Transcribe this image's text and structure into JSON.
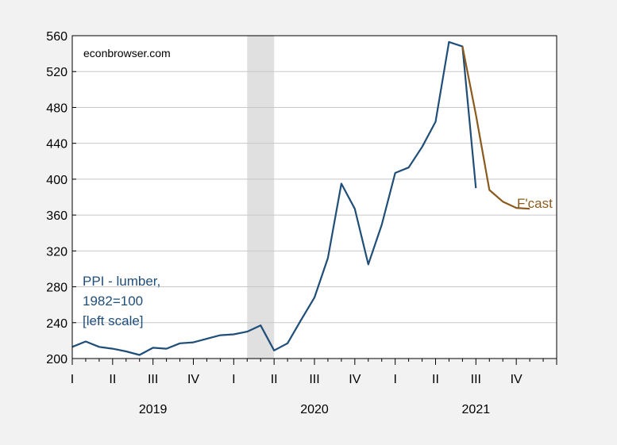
{
  "chart_data": {
    "type": "line",
    "title": "",
    "xlabel": "",
    "ylabel": "",
    "ylim": [
      200,
      560
    ],
    "yticks": [
      200,
      240,
      280,
      320,
      360,
      400,
      440,
      480,
      520,
      560
    ],
    "grid": "horizontal",
    "x_range": [
      "2019-01",
      "2021-12"
    ],
    "x_tick_labels": [
      {
        "label": "I",
        "month": "2019-01"
      },
      {
        "label": "II",
        "month": "2019-04"
      },
      {
        "label": "III",
        "month": "2019-07"
      },
      {
        "label": "IV",
        "month": "2019-10"
      },
      {
        "label": "I",
        "month": "2020-01"
      },
      {
        "label": "II",
        "month": "2020-04"
      },
      {
        "label": "III",
        "month": "2020-07"
      },
      {
        "label": "IV",
        "month": "2020-10"
      },
      {
        "label": "I",
        "month": "2021-01"
      },
      {
        "label": "II",
        "month": "2021-04"
      },
      {
        "label": "III",
        "month": "2021-07"
      },
      {
        "label": "IV",
        "month": "2021-10"
      }
    ],
    "year_labels": [
      {
        "label": "2019",
        "center_month": "2019-07"
      },
      {
        "label": "2020",
        "center_month": "2020-07"
      },
      {
        "label": "2021",
        "center_month": "2021-07"
      }
    ],
    "recession_shading": {
      "start": "2020-02",
      "end": "2020-04",
      "color": "#e0e0e0"
    },
    "series": [
      {
        "name": "PPI - lumber, 1982=100 [left scale]",
        "color": "#1f4e79",
        "x": [
          "2019-01",
          "2019-02",
          "2019-03",
          "2019-04",
          "2019-05",
          "2019-06",
          "2019-07",
          "2019-08",
          "2019-09",
          "2019-10",
          "2019-11",
          "2019-12",
          "2020-01",
          "2020-02",
          "2020-03",
          "2020-04",
          "2020-05",
          "2020-06",
          "2020-07",
          "2020-08",
          "2020-09",
          "2020-10",
          "2020-11",
          "2020-12",
          "2021-01",
          "2021-02",
          "2021-03",
          "2021-04",
          "2021-05",
          "2021-06",
          "2021-07"
        ],
        "values": [
          213,
          219,
          213,
          211,
          208,
          204,
          212,
          211,
          217,
          218,
          222,
          226,
          227,
          230,
          237,
          209,
          217,
          243,
          268,
          312,
          395,
          367,
          305,
          349,
          407,
          413,
          436,
          464,
          553,
          548,
          390
        ]
      },
      {
        "name": "F'cast",
        "color": "#8b5a1e",
        "x": [
          "2021-06",
          "2021-07",
          "2021-08",
          "2021-09",
          "2021-10",
          "2021-11"
        ],
        "values": [
          548,
          472,
          388,
          375,
          368,
          367
        ]
      }
    ],
    "annotations": [
      {
        "text": "econbrowser.com",
        "color": "#000000"
      },
      {
        "text": "PPI - lumber,",
        "color": "#1f4e79"
      },
      {
        "text": "1982=100",
        "color": "#1f4e79"
      },
      {
        "text": "[left scale]",
        "color": "#1f4e79"
      },
      {
        "text": "F'cast",
        "color": "#8b5a1e"
      }
    ]
  }
}
